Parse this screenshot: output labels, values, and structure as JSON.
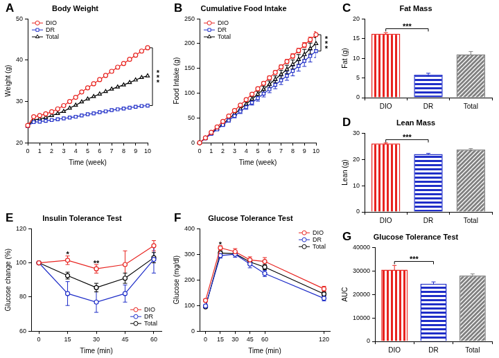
{
  "chart_data": [
    {
      "panel": "A",
      "type": "line",
      "title": "Body Weight",
      "x_label": "Time (week)",
      "y_label": "Weight (g)",
      "x": [
        0,
        0.5,
        1,
        1.5,
        2,
        2.5,
        3,
        3.5,
        4,
        4.5,
        5,
        5.5,
        6,
        6.5,
        7,
        7.5,
        8,
        8.5,
        9,
        9.5,
        10
      ],
      "xlim": [
        0,
        10
      ],
      "xticks": [
        0,
        1,
        2,
        3,
        4,
        5,
        6,
        7,
        8,
        9,
        10
      ],
      "ylim": [
        20,
        50
      ],
      "yticks": [
        20,
        30,
        40,
        50
      ],
      "grid": false,
      "legend": "upper left",
      "series": [
        {
          "name": "DIO",
          "color": "#e8231f",
          "marker": "circle",
          "values": [
            24.2,
            26.3,
            26.6,
            27,
            27.5,
            28.2,
            29,
            30,
            31,
            32.3,
            33.3,
            34.3,
            35.3,
            36.3,
            37.3,
            38.3,
            39.2,
            40.2,
            41.2,
            42.2,
            43
          ]
        },
        {
          "name": "DR",
          "color": "#1f2ec8",
          "marker": "square",
          "values": [
            24,
            25,
            25.1,
            25.3,
            25.5,
            25.7,
            25.9,
            26.1,
            26.3,
            26.6,
            26.9,
            27.1,
            27.4,
            27.6,
            27.9,
            28.1,
            28.3,
            28.5,
            28.7,
            28.9,
            29
          ]
        },
        {
          "name": "Total",
          "color": "#000000",
          "marker": "triangle",
          "values": [
            24.1,
            25.5,
            25.8,
            26.1,
            26.6,
            27.1,
            27.6,
            28.4,
            29.1,
            29.9,
            30.6,
            31.2,
            31.8,
            32.4,
            33,
            33.5,
            34,
            34.6,
            35.2,
            35.8,
            36.2
          ]
        }
      ],
      "annotations": [
        {
          "text": "***",
          "x": 10,
          "y1": 29,
          "y2": 43
        }
      ]
    },
    {
      "panel": "B",
      "type": "line",
      "title": "Cumulative Food Intake",
      "x_label": "Time (week)",
      "y_label": "Food Intake (g)",
      "x": [
        0,
        0.5,
        1,
        1.5,
        2,
        2.5,
        3,
        3.5,
        4,
        4.5,
        5,
        5.5,
        6,
        6.5,
        7,
        7.5,
        8,
        8.5,
        9,
        9.5,
        10
      ],
      "xlim": [
        0,
        10
      ],
      "xticks": [
        0,
        1,
        2,
        3,
        4,
        5,
        6,
        7,
        8,
        9,
        10
      ],
      "ylim": [
        0,
        250
      ],
      "yticks": [
        0,
        50,
        100,
        150,
        200,
        250
      ],
      "grid": false,
      "legend": "upper left",
      "series": [
        {
          "name": "DIO",
          "color": "#e8231f",
          "marker": "circle",
          "values": [
            0,
            10,
            21,
            32,
            43,
            54,
            65,
            76,
            87,
            98,
            109,
            120,
            131,
            142,
            153,
            164,
            175,
            186,
            197,
            208,
            218
          ],
          "errors": [
            0,
            0.5,
            1,
            1,
            1.5,
            1.5,
            2,
            2,
            2.5,
            2.5,
            3,
            3,
            3.5,
            3.5,
            4,
            4,
            4.5,
            4.5,
            5,
            5,
            6
          ]
        },
        {
          "name": "DR",
          "color": "#1f2ec8",
          "marker": "square",
          "values": [
            0,
            9,
            18,
            27,
            36,
            45,
            54,
            63,
            72,
            81,
            90,
            99,
            108,
            117,
            126,
            135,
            145,
            155,
            165,
            175,
            185
          ],
          "errors": [
            0,
            1,
            1.5,
            2,
            2.5,
            3,
            3.5,
            4,
            4.5,
            5,
            6,
            6.5,
            7,
            8,
            8.5,
            9,
            10,
            10.5,
            11,
            12,
            13
          ]
        },
        {
          "name": "Total",
          "color": "#000000",
          "marker": "triangle",
          "values": [
            0,
            9.5,
            19,
            28.5,
            38,
            48,
            58,
            68,
            78,
            88,
            98,
            108,
            118,
            128,
            138,
            148,
            158,
            168,
            178,
            190,
            200
          ],
          "errors": [
            0,
            1,
            1.5,
            2,
            2.5,
            3,
            3.5,
            4,
            4.5,
            5,
            5.5,
            6,
            6.5,
            7,
            8,
            8.5,
            9,
            10,
            10.5,
            11,
            12
          ]
        }
      ],
      "annotations": [
        {
          "text": "***",
          "x": 10,
          "y1": 185,
          "y2": 218
        }
      ]
    },
    {
      "panel": "C",
      "type": "bar",
      "title": "Fat Mass",
      "y_label": "Fat (g)",
      "categories": [
        "DIO",
        "DR",
        "Total"
      ],
      "values": [
        16.2,
        5.8,
        11
      ],
      "errors": [
        0.3,
        0.4,
        0.7
      ],
      "colors": [
        "#e8231f",
        "#1f2ec8",
        "#808080"
      ],
      "ylim": [
        0,
        20
      ],
      "yticks": [
        0,
        5,
        10,
        15,
        20
      ],
      "grid": false,
      "annotations": [
        {
          "text": "***",
          "from": "DIO",
          "to": "DR",
          "y": 17.5
        }
      ]
    },
    {
      "panel": "D",
      "type": "bar",
      "title": "Lean Mass",
      "y_label": "Lean (g)",
      "categories": [
        "DIO",
        "DR",
        "Total"
      ],
      "values": [
        26,
        22,
        23.7
      ],
      "errors": [
        0.3,
        0.3,
        0.4
      ],
      "colors": [
        "#e8231f",
        "#1f2ec8",
        "#808080"
      ],
      "ylim": [
        0,
        30
      ],
      "yticks": [
        0,
        10,
        20,
        30
      ],
      "grid": false,
      "annotations": [
        {
          "text": "***",
          "from": "DIO",
          "to": "DR",
          "y": 27.5
        }
      ]
    },
    {
      "panel": "E",
      "type": "line",
      "title": "Insulin Tolerance Test",
      "x_label": "Time (min)",
      "y_label": "Glucose change (%)",
      "x": [
        0,
        15,
        30,
        45,
        60
      ],
      "xlim": [
        -4,
        64
      ],
      "xticks": [
        0,
        15,
        30,
        45,
        60
      ],
      "ylim": [
        60,
        120
      ],
      "yticks": [
        60,
        80,
        100,
        120
      ],
      "grid": false,
      "legend": "lower right",
      "series": [
        {
          "name": "DIO",
          "color": "#e8231f",
          "marker": "circle",
          "values": [
            100,
            101.5,
            96.5,
            99,
            110
          ],
          "errors": [
            0,
            2.5,
            2.5,
            8,
            3
          ]
        },
        {
          "name": "DR",
          "color": "#1f2ec8",
          "marker": "circle",
          "values": [
            100,
            82,
            77,
            82,
            102
          ],
          "errors": [
            0,
            7,
            6,
            5,
            8
          ]
        },
        {
          "name": "Total",
          "color": "#000000",
          "marker": "circle",
          "values": [
            100,
            92.5,
            85.5,
            91,
            103
          ],
          "errors": [
            0,
            2,
            2.5,
            3,
            3
          ]
        }
      ],
      "annotations": [
        {
          "text": "*",
          "x": 15,
          "y": 104
        },
        {
          "text": "**",
          "x": 30,
          "y": 99
        }
      ]
    },
    {
      "panel": "F",
      "type": "line",
      "title": "Glucose Tolerance Test",
      "x_label": "Time (min)",
      "y_label": "Glucose (mg/dl)",
      "x": [
        0,
        15,
        30,
        45,
        60,
        120
      ],
      "xlim": [
        -6,
        126
      ],
      "xticks": [
        0,
        15,
        30,
        45,
        60,
        120
      ],
      "ylim": [
        0,
        400
      ],
      "yticks": [
        0,
        100,
        200,
        300,
        400
      ],
      "grid": false,
      "legend": "upper right",
      "series": [
        {
          "name": "DIO",
          "color": "#e8231f",
          "marker": "circle",
          "values": [
            120,
            325,
            310,
            278,
            272,
            165
          ],
          "errors": [
            5,
            8,
            12,
            12,
            15,
            10
          ]
        },
        {
          "name": "DR",
          "color": "#1f2ec8",
          "marker": "circle",
          "values": [
            98,
            295,
            300,
            262,
            225,
            128
          ],
          "errors": [
            5,
            10,
            12,
            15,
            12,
            10
          ]
        },
        {
          "name": "Total",
          "color": "#000000",
          "marker": "circle",
          "values": [
            95,
            305,
            302,
            270,
            250,
            145
          ],
          "errors": [
            4,
            8,
            8,
            10,
            10,
            8
          ]
        }
      ],
      "annotations": [
        {
          "text": "*",
          "x": 15,
          "y": 332
        }
      ]
    },
    {
      "panel": "G",
      "type": "bar",
      "title": "Glucose Tolerance Test",
      "y_label": "AUC",
      "categories": [
        "DIO",
        "DR",
        "Total"
      ],
      "values": [
        30500,
        24500,
        28000
      ],
      "errors": [
        1800,
        800,
        700
      ],
      "colors": [
        "#e8231f",
        "#1f2ec8",
        "#808080"
      ],
      "ylim": [
        0,
        40000
      ],
      "yticks": [
        0,
        10000,
        20000,
        30000,
        40000
      ],
      "grid": false,
      "annotations": [
        {
          "text": "***",
          "from": "DIO",
          "to": "DR",
          "y": 34000
        }
      ]
    }
  ]
}
